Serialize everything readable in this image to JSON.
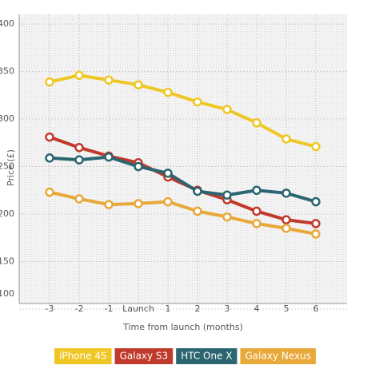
{
  "chart_data": {
    "type": "line",
    "x_label": "Time from launch (months)",
    "y_label": "Price (£)",
    "categories": [
      "-3",
      "-2",
      "-1",
      "Launch",
      "1",
      "2",
      "3",
      "4",
      "5",
      "6"
    ],
    "series": [
      {
        "name": "iPhone 4S",
        "color": "#efc724",
        "values": [
          339,
          346,
          341,
          336,
          328,
          318,
          310,
          296,
          279,
          271
        ]
      },
      {
        "name": "Galaxy S3",
        "color": "#c0392b",
        "values": [
          281,
          270,
          261,
          254,
          239,
          225,
          215,
          203,
          194,
          190
        ]
      },
      {
        "name": "HTC One X",
        "color": "#2a6570",
        "values": [
          259,
          257,
          260,
          250,
          243,
          224,
          220,
          225,
          222,
          213
        ]
      },
      {
        "name": "Galaxy Nexus",
        "color": "#e8a83a",
        "values": [
          223,
          216,
          210,
          211,
          213,
          203,
          197,
          190,
          185,
          179
        ]
      }
    ],
    "ylim": [
      100,
      400
    ],
    "yticks": [
      100,
      150,
      200,
      250,
      300,
      350,
      400
    ],
    "grid": true
  }
}
